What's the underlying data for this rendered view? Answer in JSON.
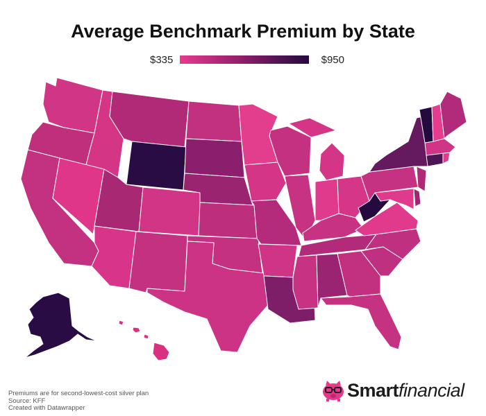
{
  "title": "Average Benchmark Premium by State",
  "legend": {
    "min_label": "$335",
    "max_label": "$950",
    "color_low": "#e83a8c",
    "color_mid": "#8a1d6a",
    "color_high": "#230a3f"
  },
  "notes": {
    "line1": "Premiums are for second-lowest-cost silver plan",
    "line2": "Source: KFF",
    "line3": "Created with Datawrapper"
  },
  "brand": {
    "word1": "Smart",
    "word2": "financial",
    "logo_icon": "piggy-bank-with-glasses-icon"
  },
  "map_data": {
    "type": "choropleth",
    "region": "United States",
    "states": [
      {
        "id": "AK",
        "color": "#2a0c45"
      },
      {
        "id": "HI",
        "color": "#d9307f"
      },
      {
        "id": "WA",
        "color": "#d13585"
      },
      {
        "id": "OR",
        "color": "#bf2f7c"
      },
      {
        "id": "CA",
        "color": "#c33280"
      },
      {
        "id": "ID",
        "color": "#d43584"
      },
      {
        "id": "NV",
        "color": "#e0368a"
      },
      {
        "id": "MT",
        "color": "#b02a77"
      },
      {
        "id": "WY",
        "color": "#2a0c45"
      },
      {
        "id": "UT",
        "color": "#a82874"
      },
      {
        "id": "AZ",
        "color": "#d8358a"
      },
      {
        "id": "CO",
        "color": "#d33586"
      },
      {
        "id": "NM",
        "color": "#c43181"
      },
      {
        "id": "ND",
        "color": "#c13180"
      },
      {
        "id": "SD",
        "color": "#8b1f6e"
      },
      {
        "id": "NE",
        "color": "#9a2470"
      },
      {
        "id": "KS",
        "color": "#bd2f7d"
      },
      {
        "id": "OK",
        "color": "#c33180"
      },
      {
        "id": "TX",
        "color": "#cd3384"
      },
      {
        "id": "MN",
        "color": "#e33d8e"
      },
      {
        "id": "IA",
        "color": "#d43586"
      },
      {
        "id": "MO",
        "color": "#b32b7a"
      },
      {
        "id": "AR",
        "color": "#cf3487"
      },
      {
        "id": "LA",
        "color": "#7e1d68"
      },
      {
        "id": "WI",
        "color": "#c43181"
      },
      {
        "id": "IL",
        "color": "#c73282"
      },
      {
        "id": "MI",
        "color": "#d53587"
      },
      {
        "id": "IN",
        "color": "#e03a8c"
      },
      {
        "id": "OH",
        "color": "#d63688"
      },
      {
        "id": "KY",
        "color": "#c73282"
      },
      {
        "id": "TN",
        "color": "#b22b7a"
      },
      {
        "id": "MS",
        "color": "#c73282"
      },
      {
        "id": "AL",
        "color": "#9b2472"
      },
      {
        "id": "GA",
        "color": "#c13180"
      },
      {
        "id": "FL",
        "color": "#c53282"
      },
      {
        "id": "SC",
        "color": "#c03080"
      },
      {
        "id": "NC",
        "color": "#c03080"
      },
      {
        "id": "VA",
        "color": "#e1398c"
      },
      {
        "id": "WV",
        "color": "#250a40"
      },
      {
        "id": "PA",
        "color": "#c63282"
      },
      {
        "id": "NY",
        "color": "#651a60"
      },
      {
        "id": "VT",
        "color": "#250a40"
      },
      {
        "id": "NH",
        "color": "#e53c8f"
      },
      {
        "id": "ME",
        "color": "#b22b7a"
      },
      {
        "id": "MA",
        "color": "#d03487"
      },
      {
        "id": "CT",
        "color": "#4e1555"
      },
      {
        "id": "RI",
        "color": "#e23b8d"
      },
      {
        "id": "NJ",
        "color": "#b02a79"
      },
      {
        "id": "DE",
        "color": "#a02675"
      },
      {
        "id": "MD",
        "color": "#e03a8c"
      }
    ]
  }
}
